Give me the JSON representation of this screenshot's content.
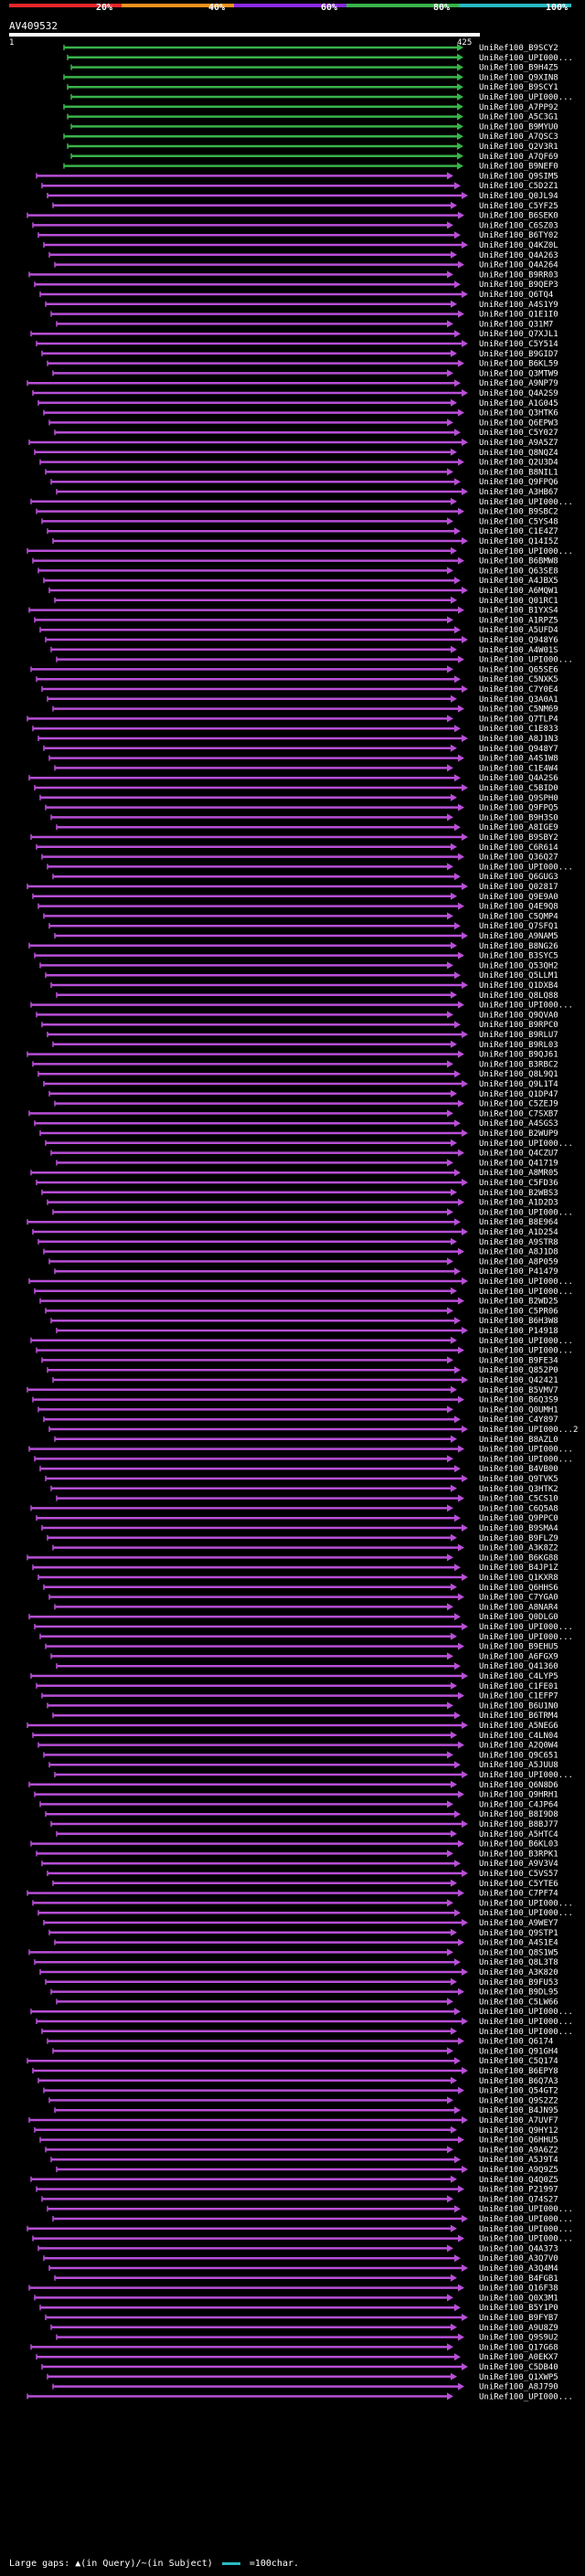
{
  "legend": {
    "segments": [
      {
        "label": "20%",
        "color": "#e8262b"
      },
      {
        "label": "40%",
        "color": "#f7921e"
      },
      {
        "label": "60%",
        "color": "#8a2be2"
      },
      {
        "label": "80%",
        "color": "#39b34a"
      },
      {
        "label": "100%",
        "color": "#27b9c2"
      }
    ]
  },
  "query": {
    "id": "AV409532",
    "start": "1",
    "end": "425"
  },
  "hits": [
    "UniRef100_B9SCY2",
    "UniRef100_UPI000...",
    "UniRef100_B9H4Z5",
    "UniRef100_Q9XIN8",
    "UniRef100_B9SCY1",
    "UniRef100_UPI000...",
    "UniRef100_A7PP92",
    "UniRef100_A5C3G1",
    "UniRef100_B9MYU0",
    "UniRef100_A7QSC3",
    "UniRef100_Q2V3R1",
    "UniRef100_A7QF69",
    "UniRef100_B9NEF0",
    "UniRef100_Q9SIM5",
    "UniRef100_C5D2Z1",
    "UniRef100_Q0JL94",
    "UniRef100_C5YF25",
    "UniRef100_B6SEK0",
    "UniRef100_C6SZ03",
    "UniRef100_B6TY02",
    "UniRef100_Q4KZ0L",
    "UniRef100_Q4A263",
    "UniRef100_Q4A264",
    "UniRef100_B9RR03",
    "UniRef100_B9QEP3",
    "UniRef100_Q6TQ4",
    "UniRef100_A4S1Y9",
    "UniRef100_Q1E1I0",
    "UniRef100_Q31M7",
    "UniRef100_Q7XJL1",
    "UniRef100_C5Y514",
    "UniRef100_B9GID7",
    "UniRef100_B6KL59",
    "UniRef100_Q3MTW9",
    "UniRef100_A9NP79",
    "UniRef100_Q4A2S9",
    "UniRef100_A1G045",
    "UniRef100_Q3HTK6",
    "UniRef100_Q6EPW3",
    "UniRef100_C5Y027",
    "UniRef100_A9A5Z7",
    "UniRef100_Q8NQZ4",
    "UniRef100_Q2U3D4",
    "UniRef100_B8NIL1",
    "UniRef100_Q9FPQ6",
    "UniRef100_A3HB67",
    "UniRef100_UPI000...",
    "UniRef100_B9SBC2",
    "UniRef100_C5YS48",
    "UniRef100_C1E4Z7",
    "UniRef100_Q14I5Z",
    "UniRef100_UPI000...",
    "UniRef100_B6BMW8",
    "UniRef100_Q63SE8",
    "UniRef100_A4JBX5",
    "UniRef100_A6MQW1",
    "UniRef100_Q01RC1",
    "UniRef100_B1YXS4",
    "UniRef100_A1RPZ5",
    "UniRef100_A5UFD4",
    "UniRef100_Q948Y6",
    "UniRef100_A4W01S",
    "UniRef100_UPI000...",
    "UniRef100_Q65SE6",
    "UniRef100_C5NXK5",
    "UniRef100_C7Y0E4",
    "UniRef100_Q3A0A1",
    "UniRef100_C5NM69",
    "UniRef100_Q7TLP4",
    "UniRef100_C1E833",
    "UniRef100_A8J1N3",
    "UniRef100_Q948Y7",
    "UniRef100_A4S1W8",
    "UniRef100_C1E4W4",
    "UniRef100_Q4A2S6",
    "UniRef100_C5BID0",
    "UniRef100_Q9SPH0",
    "UniRef100_Q9FPQ5",
    "UniRef100_B9H3S0",
    "UniRef100_A8IGE9",
    "UniRef100_B9SBY2",
    "UniRef100_C6R614",
    "UniRef100_Q36Q27",
    "UniRef100_UPI000...",
    "UniRef100_Q6GUG3",
    "UniRef100_Q02817",
    "UniRef100_Q9E9A0",
    "UniRef100_Q4E9Q8",
    "UniRef100_C5QMP4",
    "UniRef100_Q7SFQ1",
    "UniRef100_A9NAM5",
    "UniRef100_B8NG26",
    "UniRef100_B3SYC5",
    "UniRef100_Q53QH2",
    "UniRef100_Q5LLM1",
    "UniRef100_Q1DXB4",
    "UniRef100_Q8LQ88",
    "UniRef100_UPI000...",
    "UniRef100_Q9QVA0",
    "UniRef100_B9RPC0",
    "UniRef100_B9RLU7",
    "UniRef100_B9RL03",
    "UniRef100_B9QJ61",
    "UniRef100_B3RBC2",
    "UniRef100_Q8L9Q1",
    "UniRef100_Q9L1T4",
    "UniRef100_Q1DP47",
    "UniRef100_C5ZEJ9",
    "UniRef100_C7SXB7",
    "UniRef100_A4SGS3",
    "UniRef100_B2WUP9",
    "UniRef100_UPI000...",
    "UniRef100_Q4CZU7",
    "UniRef100_Q41719",
    "UniRef100_A8MR05",
    "UniRef100_C5FD36",
    "UniRef100_B2WBS3",
    "UniRef100_A1D2D3",
    "UniRef100_UPI000...",
    "UniRef100_B8E964",
    "UniRef100_A1D254",
    "UniRef100_A9STR8",
    "UniRef100_A8J1D8",
    "UniRef100_A8P059",
    "UniRef100_P41479",
    "UniRef100_UPI000...",
    "UniRef100_UPI000...",
    "UniRef100_B2WD25",
    "UniRef100_C5PR06",
    "UniRef100_B6H3W8",
    "UniRef100_P14918",
    "UniRef100_UPI000...",
    "UniRef100_UPI000...",
    "UniRef100_B9FE34",
    "UniRef100_Q852P0",
    "UniRef100_Q42421",
    "UniRef100_B5VMV7",
    "UniRef100_B6Q3S9",
    "UniRef100_Q0UMH1",
    "UniRef100_C4Y897",
    "UniRef100_UPI000...2",
    "UniRef100_B8AZL0",
    "UniRef100_UPI000...",
    "UniRef100_UPI000...",
    "UniRef100_B4VB00",
    "UniRef100_Q9TVK5",
    "UniRef100_Q3HTK2",
    "UniRef100_C5CS10",
    "UniRef100_C6Q5A8",
    "UniRef100_Q9PPC0",
    "UniRef100_B9SMA4",
    "UniRef100_B9FLZ9",
    "UniRef100_A3K8Z2",
    "UniRef100_B6KG88",
    "UniRef100_B4JP1Z",
    "UniRef100_Q1KXR8",
    "UniRef100_Q6HHS6",
    "UniRef100_C7YGA0",
    "UniRef100_A8NAR4",
    "UniRef100_Q0DLG0",
    "UniRef100_UPI000...",
    "UniRef100_UPI000...",
    "UniRef100_B9EHU5",
    "UniRef100_A6FGX9",
    "UniRef100_Q41360",
    "UniRef100_C4LYP5",
    "UniRef100_C1FE01",
    "UniRef100_C1EFP7",
    "UniRef100_B6U1N0",
    "UniRef100_B6TRM4",
    "UniRef100_A5NEG6",
    "UniRef100_C4LN04",
    "UniRef100_A2Q0W4",
    "UniRef100_Q9C651",
    "UniRef100_A5JUU8",
    "UniRef100_UPI000...",
    "UniRef100_Q6N8D6",
    "UniRef100_Q9HRH1",
    "UniRef100_C4JP64",
    "UniRef100_B8I9D8",
    "UniRef100_B8BJ77",
    "UniRef100_A5HTC4",
    "UniRef100_B6KL03",
    "UniRef100_B3RPK1",
    "UniRef100_A9V3V4",
    "UniRef100_C5VS57",
    "UniRef100_C5YTE6",
    "UniRef100_C7PF74",
    "UniRef100_UPI000...",
    "UniRef100_UPI000...",
    "UniRef100_A9WEY7",
    "UniRef100_Q9STP1",
    "UniRef100_A4S1E4",
    "UniRef100_Q8S1W5",
    "UniRef100_Q8L3T8",
    "UniRef100_A3K820",
    "UniRef100_B9FU53",
    "UniRef100_B9DL95",
    "UniRef100_C5LW66",
    "UniRef100_UPI000...",
    "UniRef100_UPI000...",
    "UniRef100_UPI000...",
    "UniRef100_Q6174",
    "UniRef100_Q91GH4",
    "UniRef100_C5Q174",
    "UniRef100_B6EPY8",
    "UniRef100_B6Q7A3",
    "UniRef100_Q54GT2",
    "UniRef100_Q9S2Z2",
    "UniRef100_B4JN95",
    "UniRef100_A7UVF7",
    "UniRef100_Q9HY12",
    "UniRef100_Q6HHU5",
    "UniRef100_A9A6Z2",
    "UniRef100_A5J9T4",
    "UniRef100_A9Q9Z5",
    "UniRef100_Q4Q0Z5",
    "UniRef100_P21997",
    "UniRef100_Q74S27",
    "UniRef100_UPI000...",
    "UniRef100_UPI000...",
    "UniRef100_UPI000...",
    "UniRef100_UPI000...",
    "UniRef100_Q4A373",
    "UniRef100_A3Q7V0",
    "UniRef100_A3Q4M4",
    "UniRef100_B4FGB1",
    "UniRef100_Q16F38",
    "UniRef100_Q0X3M1",
    "UniRef100_B5Y1P0",
    "UniRef100_B9FYB7",
    "UniRef100_A9U8Z9",
    "UniRef100_Q9S9U2",
    "UniRef100_Q17G68",
    "UniRef100_A0EKX7",
    "UniRef100_C5DB40",
    "UniRef100_Q1XWP5",
    "UniRef100_A8J790",
    "UniRef100_UPI000..."
  ],
  "footer": {
    "text": "Large gaps: ▲(in Query)/~(in Subject)",
    "scale_text": "=100char."
  }
}
